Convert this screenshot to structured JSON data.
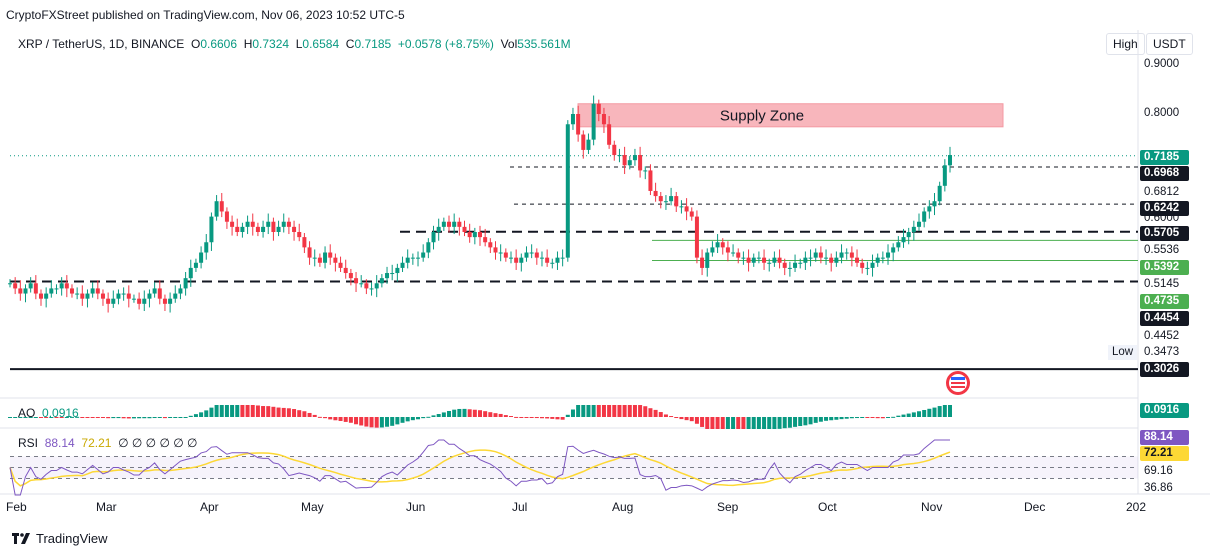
{
  "header": {
    "published": "CryptoFXStreet published on TradingView.com, Nov 06, 2023 10:52 UTC-5",
    "symbol": "XRP / TetherUS, 1D, BINANCE",
    "o_label": "O",
    "o_value": "0.6606",
    "h_label": "H",
    "h_value": "0.7324",
    "l_label": "L",
    "l_value": "0.6584",
    "c_label": "C",
    "c_value": "0.7185",
    "change": "+0.0578 (+8.75%)",
    "vol_label": "Vol",
    "vol_value": "535.561M",
    "high_btn": "High",
    "currency_btn": "USDT"
  },
  "colors": {
    "up": "#089981",
    "down": "#f23645",
    "supply": "#f8b6bc",
    "rsi": "#7e57c2",
    "rsi_ma": "#fdd835",
    "range": "#4caf50"
  },
  "chart_data": {
    "type": "candlestick",
    "title": "XRP / TetherUS, 1D, BINANCE",
    "x_axis_labels": [
      "Feb",
      "Mar",
      "Apr",
      "May",
      "Jun",
      "Jul",
      "Aug",
      "Sep",
      "Oct",
      "Nov",
      "Dec",
      "202"
    ],
    "price_axis_ticks": [
      "0.9000",
      "0.8000",
      "0.6812",
      "0.6000",
      "0.5536",
      "0.5145",
      "0.4452",
      "0.3473"
    ],
    "annotation": "Supply Zone",
    "supply_zone": [
      0.775,
      0.82
    ],
    "levels": [
      {
        "value": "0.6968",
        "style": "dotted"
      },
      {
        "value": "0.6242",
        "style": "dotted"
      },
      {
        "value": "0.5705",
        "style": "dashed"
      },
      {
        "value": "0.4735",
        "style": "dashed"
      },
      {
        "value": "0.3026",
        "style": "solid"
      }
    ],
    "range_box": [
      0.5145,
      0.5536
    ],
    "last_price": "0.7185",
    "price_labels": [
      {
        "value": "0.9000",
        "kind": "plain"
      },
      {
        "value": "0.8000",
        "kind": "plain"
      },
      {
        "value": "0.7185",
        "kind": "teal"
      },
      {
        "value": "0.6968",
        "kind": "black"
      },
      {
        "value": "0.6812",
        "kind": "plain"
      },
      {
        "value": "0.6242",
        "kind": "black"
      },
      {
        "value": "0.6000",
        "kind": "plain"
      },
      {
        "value": "0.5705",
        "kind": "black"
      },
      {
        "value": "0.5536",
        "kind": "plain"
      },
      {
        "value": "0.5392",
        "kind": "green"
      },
      {
        "value": "0.5145",
        "kind": "plain"
      },
      {
        "value": "0.4735",
        "kind": "green"
      },
      {
        "value": "0.4454",
        "kind": "black"
      },
      {
        "value": "0.4452",
        "kind": "plain"
      },
      {
        "value": "0.3473",
        "kind": "plain"
      },
      {
        "value": "0.3026",
        "kind": "black"
      }
    ],
    "high_tag": "High",
    "low_tag": "Low",
    "price_close_series": [
      0.47,
      0.46,
      0.45,
      0.46,
      0.47,
      0.45,
      0.44,
      0.45,
      0.46,
      0.46,
      0.47,
      0.46,
      0.45,
      0.45,
      0.44,
      0.45,
      0.46,
      0.45,
      0.44,
      0.43,
      0.44,
      0.45,
      0.45,
      0.44,
      0.44,
      0.43,
      0.44,
      0.45,
      0.46,
      0.44,
      0.43,
      0.44,
      0.45,
      0.46,
      0.48,
      0.5,
      0.51,
      0.53,
      0.55,
      0.6,
      0.63,
      0.61,
      0.59,
      0.58,
      0.57,
      0.58,
      0.59,
      0.58,
      0.57,
      0.58,
      0.59,
      0.57,
      0.58,
      0.59,
      0.58,
      0.57,
      0.56,
      0.54,
      0.52,
      0.52,
      0.51,
      0.53,
      0.52,
      0.51,
      0.5,
      0.49,
      0.48,
      0.47,
      0.47,
      0.46,
      0.46,
      0.47,
      0.48,
      0.49,
      0.49,
      0.5,
      0.51,
      0.52,
      0.52,
      0.52,
      0.53,
      0.55,
      0.57,
      0.58,
      0.59,
      0.58,
      0.59,
      0.58,
      0.57,
      0.56,
      0.57,
      0.56,
      0.55,
      0.54,
      0.53,
      0.53,
      0.52,
      0.52,
      0.51,
      0.52,
      0.53,
      0.53,
      0.52,
      0.52,
      0.51,
      0.51,
      0.52,
      0.52,
      0.78,
      0.8,
      0.76,
      0.73,
      0.75,
      0.82,
      0.8,
      0.78,
      0.74,
      0.72,
      0.72,
      0.7,
      0.71,
      0.72,
      0.69,
      0.69,
      0.65,
      0.64,
      0.63,
      0.63,
      0.64,
      0.62,
      0.62,
      0.61,
      0.6,
      0.52,
      0.5,
      0.53,
      0.54,
      0.55,
      0.54,
      0.53,
      0.53,
      0.52,
      0.52,
      0.51,
      0.52,
      0.52,
      0.51,
      0.51,
      0.52,
      0.51,
      0.5,
      0.5,
      0.51,
      0.51,
      0.52,
      0.52,
      0.53,
      0.52,
      0.52,
      0.51,
      0.52,
      0.53,
      0.53,
      0.52,
      0.51,
      0.5,
      0.5,
      0.51,
      0.52,
      0.52,
      0.53,
      0.54,
      0.55,
      0.56,
      0.57,
      0.58,
      0.59,
      0.61,
      0.62,
      0.63,
      0.66,
      0.7,
      0.72
    ],
    "ao_value": "0.0916",
    "rsi_values": [
      "88.14",
      "72.21"
    ],
    "rsi_axis_ticks": [
      "69.16",
      "36.86"
    ]
  },
  "indicators": {
    "ao_label": "AO",
    "ao_value": "0.0916",
    "rsi_label": "RSI",
    "rsi_value": "88.14",
    "rsi_ma_value": "72.21",
    "rsi_extra": "∅ ∅ ∅ ∅ ∅ ∅"
  },
  "footer": {
    "brand": "TradingView"
  }
}
